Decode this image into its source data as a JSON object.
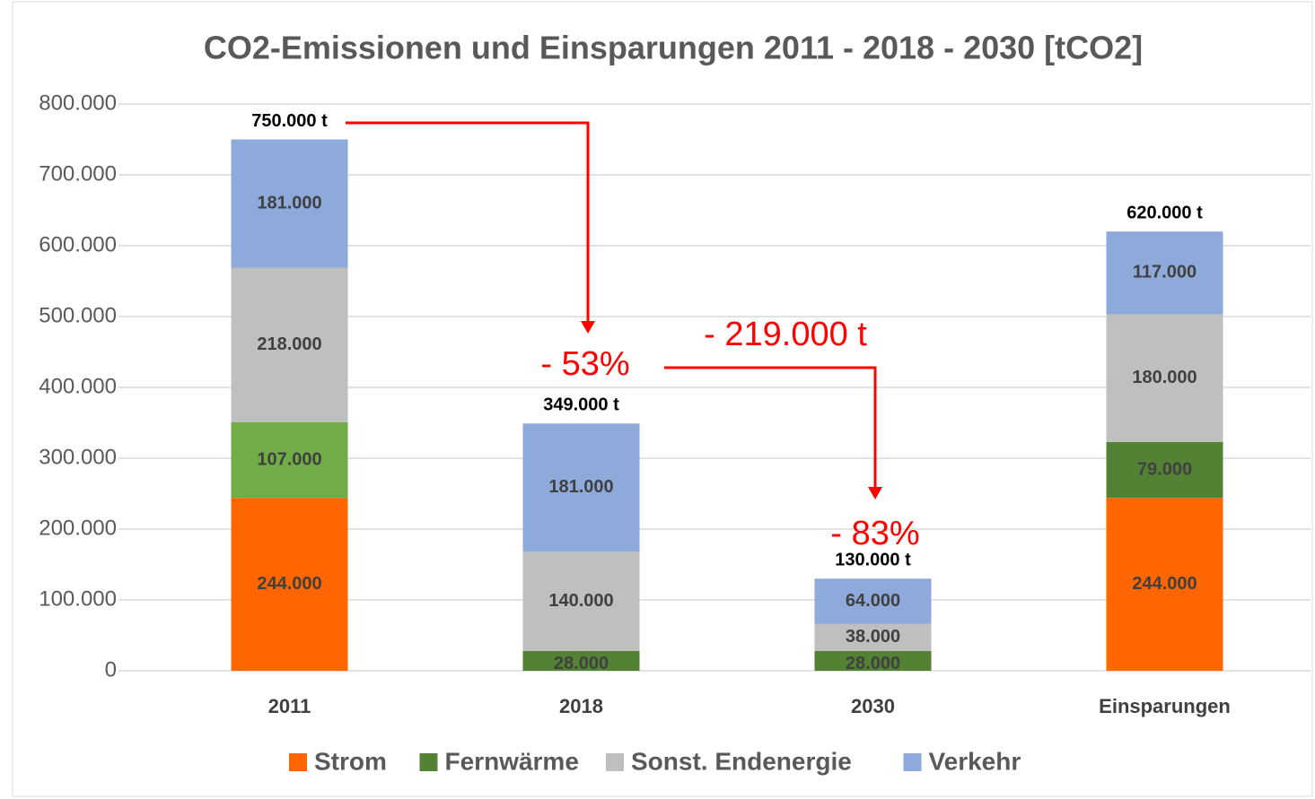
{
  "chart_data": {
    "type": "stacked_bar",
    "title": "CO2-Emissionen und Einsparungen 2011 - 2018 - 2030 [tCO2]",
    "categories": [
      "2011",
      "2018",
      "2030",
      "Einsparungen"
    ],
    "series": [
      {
        "name": "Strom",
        "color": "#ff6600",
        "values": [
          244000,
          null,
          null,
          244000
        ],
        "value_labels": [
          "244.000",
          null,
          null,
          "244.000"
        ]
      },
      {
        "name": "Fernwärme",
        "color": "#548235",
        "colors": [
          "#70ad47",
          "#548235",
          "#548235",
          "#548235"
        ],
        "values": [
          107000,
          28000,
          28000,
          79000
        ],
        "value_labels": [
          "107.000",
          "28.000",
          "28.000",
          "79.000"
        ]
      },
      {
        "name": "Sonst. Endenergie",
        "color": "#bfbfbf",
        "values": [
          218000,
          140000,
          38000,
          180000
        ],
        "value_labels": [
          "218.000",
          "140.000",
          "38.000",
          "180.000"
        ]
      },
      {
        "name": "Verkehr",
        "color": "#8eaadb",
        "values": [
          181000,
          181000,
          64000,
          117000
        ],
        "value_labels": [
          "181.000",
          "181.000",
          "64.000",
          "117.000"
        ]
      }
    ],
    "totals": {
      "values": [
        750000,
        349000,
        130000,
        620000
      ],
      "value_labels": [
        "750.000 t",
        "349.000 t",
        "130.000 t",
        "620.000 t"
      ]
    },
    "annotations": [
      "- 53%",
      "- 219.000 t",
      "- 83%"
    ],
    "ylim": [
      0,
      800000
    ],
    "yticks": [
      0,
      {
        "value": 100000,
        "label": "100.000"
      },
      {
        "value": 200000,
        "label": "200.000"
      },
      {
        "value": 300000,
        "label": "300.000"
      },
      {
        "value": 400000,
        "label": "400.000"
      },
      {
        "value": 500000,
        "label": "500.000"
      },
      {
        "value": 600000,
        "label": "600.000"
      },
      {
        "value": 700000,
        "label": "700.000"
      },
      {
        "value": 800000,
        "label": "800.000"
      }
    ],
    "grid": true,
    "legend": "bottom"
  }
}
